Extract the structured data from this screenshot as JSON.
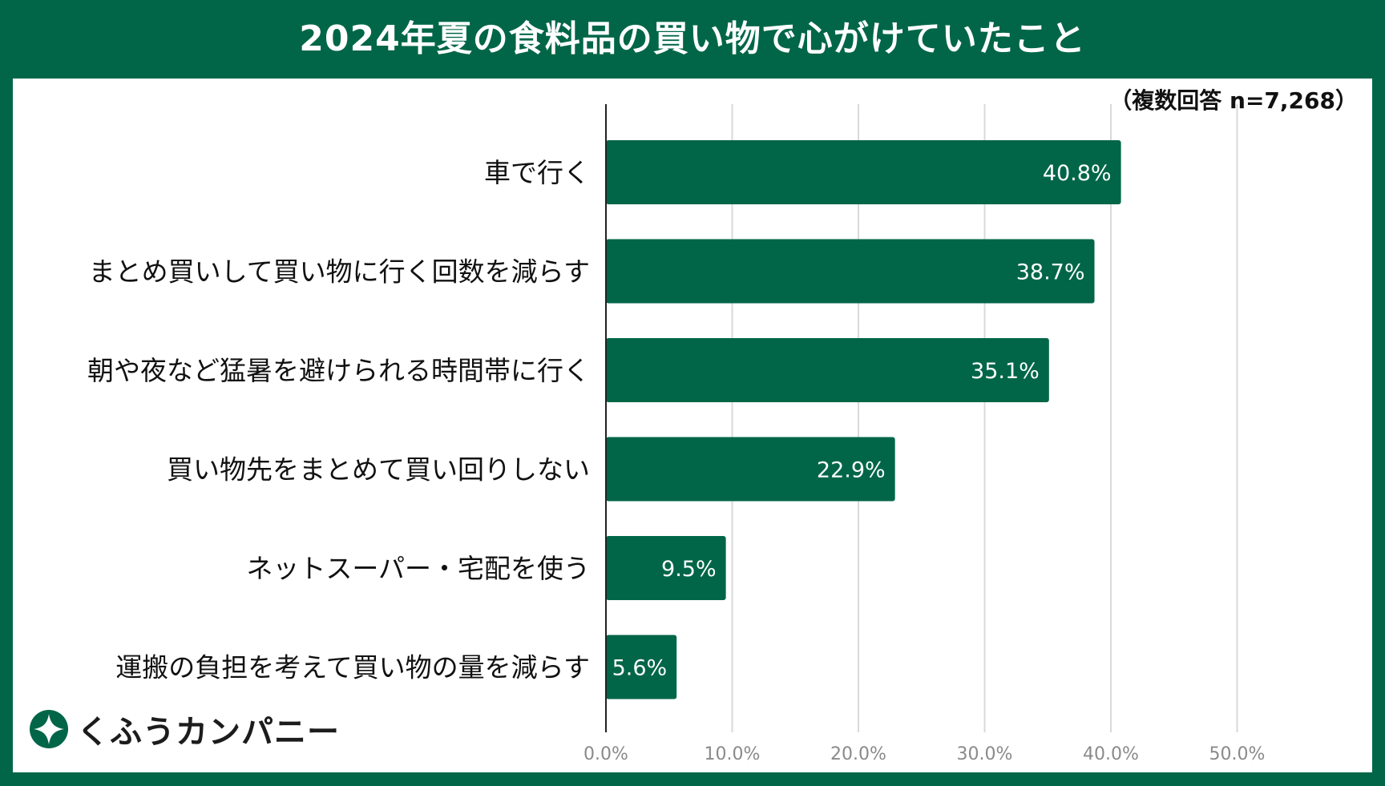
{
  "chart_data": {
    "type": "bar",
    "orientation": "horizontal",
    "title": "2024年夏の食料品の買い物で心がけていたこと",
    "note": "（複数回答 n=7,268）",
    "categories": [
      "車で行く",
      "まとめ買いして買い物に行く回数を減らす",
      "朝や夜など猛暑を避けられる時間帯に行く",
      "買い物先をまとめて買い回りしない",
      "ネットスーパー・宅配を使う",
      "運搬の負担を考えて買い物の量を減らす"
    ],
    "values": [
      40.8,
      38.7,
      35.1,
      22.9,
      9.5,
      5.6
    ],
    "value_labels": [
      "40.8%",
      "38.7%",
      "35.1%",
      "22.9%",
      "9.5%",
      "5.6%"
    ],
    "xlim": [
      0,
      50
    ],
    "ticks": [
      0,
      10,
      20,
      30,
      40,
      50
    ],
    "tick_labels": [
      "0.0%",
      "10.0%",
      "20.0%",
      "30.0%",
      "40.0%",
      "50.0%"
    ],
    "xlabel": "",
    "ylabel": "",
    "grid": true,
    "bar_color": "#006647"
  },
  "brand": {
    "logo_text": "くふうカンパニー",
    "logo_icon": "kufu-star-icon",
    "frame_color": "#006647"
  }
}
